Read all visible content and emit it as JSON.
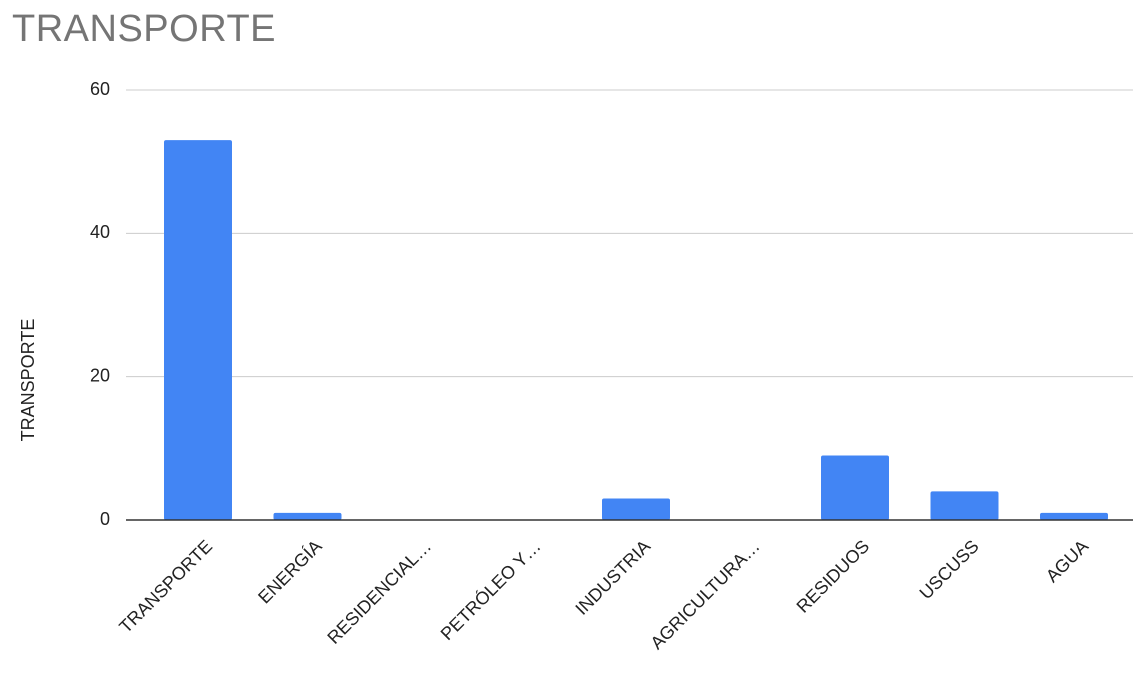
{
  "chart_data": {
    "type": "bar",
    "title": "TRANSPORTE",
    "xlabel": "",
    "ylabel": "TRANSPORTE",
    "categories": [
      "TRANSPORTE",
      "ENERGÍA",
      "RESIDENCIAL…",
      "PETRÓLEO Y…",
      "INDUSTRIA",
      "AGRICULTURA…",
      "RESIDUOS",
      "USCUSS",
      "AGUA"
    ],
    "series": [
      {
        "values": [
          53,
          1,
          0,
          0,
          3,
          0,
          9,
          4,
          1
        ]
      }
    ],
    "ylim": [
      0,
      60
    ],
    "yticks": [
      0,
      20,
      40,
      60
    ],
    "grid": true,
    "bar_color": "#4285f4",
    "grid_color": "#cccccc",
    "axis_color": "#333333"
  }
}
